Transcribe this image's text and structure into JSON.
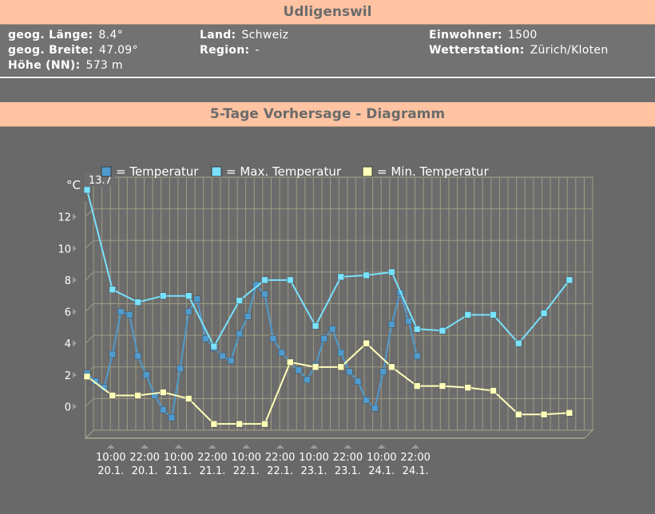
{
  "location": {
    "title": "Udligenswil",
    "laenge_label": "geog. Länge:",
    "laenge_value": "8.4°",
    "breite_label": "geog. Breite:",
    "breite_value": "47.09°",
    "hoehe_label": "Höhe (NN):",
    "hoehe_value": "573 m",
    "land_label": "Land:",
    "land_value": "Schweiz",
    "region_label": "Region:",
    "region_value": "-",
    "einwohner_label": "Einwohner:",
    "einwohner_value": "1500",
    "station_label": "Wetterstation:",
    "station_value": "Zürich/Kloten"
  },
  "forecast": {
    "title": "5-Tage Vorhersage - Diagramm"
  },
  "chart_data": {
    "type": "line",
    "ylabel": "°C",
    "ylim": [
      -2,
      14
    ],
    "yticks": [
      0,
      2,
      4,
      6,
      8,
      10,
      12
    ],
    "grid": true,
    "legend_position": "top",
    "max_annotation": "13.7",
    "x_labels": [
      {
        "time": "10:00",
        "date": "20.1."
      },
      {
        "time": "22:00",
        "date": "20.1."
      },
      {
        "time": "10:00",
        "date": "21.1."
      },
      {
        "time": "22:00",
        "date": "21.1."
      },
      {
        "time": "10:00",
        "date": "22.1."
      },
      {
        "time": "22:00",
        "date": "22.1."
      },
      {
        "time": "10:00",
        "date": "23.1."
      },
      {
        "time": "22:00",
        "date": "23.1."
      },
      {
        "time": "10:00",
        "date": "24.1."
      },
      {
        "time": "22:00",
        "date": "24.1."
      }
    ],
    "series": [
      {
        "name": "= Temperatur",
        "color": "#4f9bcd",
        "points": [
          [
            0,
            2.1
          ],
          [
            1,
            1.6
          ],
          [
            2,
            1.2
          ],
          [
            3,
            3.3
          ],
          [
            4,
            6.0
          ],
          [
            5,
            5.8
          ],
          [
            6,
            3.2
          ],
          [
            7,
            2.0
          ],
          [
            8,
            0.7
          ],
          [
            9,
            -0.2
          ],
          [
            10,
            -0.7
          ],
          [
            11,
            2.4
          ],
          [
            12,
            6.0
          ],
          [
            13,
            6.8
          ],
          [
            14,
            4.3
          ],
          [
            15,
            3.7
          ],
          [
            16,
            3.2
          ],
          [
            17,
            2.9
          ],
          [
            18,
            4.6
          ],
          [
            19,
            5.7
          ],
          [
            20,
            7.7
          ],
          [
            21,
            7.1
          ],
          [
            22,
            4.3
          ],
          [
            23,
            3.4
          ],
          [
            24,
            2.8
          ],
          [
            25,
            2.3
          ],
          [
            26,
            1.7
          ],
          [
            27,
            2.6
          ],
          [
            28,
            4.3
          ],
          [
            29,
            4.9
          ],
          [
            30,
            3.4
          ],
          [
            31,
            2.2
          ],
          [
            32,
            1.6
          ],
          [
            33,
            0.4
          ],
          [
            34,
            -0.1
          ],
          [
            35,
            2.2
          ],
          [
            36,
            5.2
          ],
          [
            37,
            7.2
          ],
          [
            38,
            5.4
          ],
          [
            39,
            3.2
          ]
        ]
      },
      {
        "name": "= Max. Temperatur",
        "color": "#78e2ff",
        "points": [
          [
            0,
            13.7
          ],
          [
            3,
            7.4
          ],
          [
            6,
            6.6
          ],
          [
            9,
            7.0
          ],
          [
            12,
            7.0
          ],
          [
            15,
            3.8
          ],
          [
            18,
            6.7
          ],
          [
            21,
            8.0
          ],
          [
            24,
            8.0
          ],
          [
            27,
            5.1
          ],
          [
            30,
            8.2
          ],
          [
            33,
            8.3
          ],
          [
            36,
            8.5
          ],
          [
            39,
            4.9
          ],
          [
            42,
            4.8
          ],
          [
            45,
            5.8
          ],
          [
            48,
            5.8
          ],
          [
            51,
            4.0
          ],
          [
            54,
            5.9
          ],
          [
            57,
            8.0
          ]
        ]
      },
      {
        "name": "= Min. Temperatur",
        "color": "#ffffb9",
        "points": [
          [
            0,
            1.9
          ],
          [
            3,
            0.7
          ],
          [
            6,
            0.7
          ],
          [
            9,
            0.9
          ],
          [
            12,
            0.5
          ],
          [
            15,
            -1.1
          ],
          [
            18,
            -1.1
          ],
          [
            21,
            -1.1
          ],
          [
            24,
            2.8
          ],
          [
            27,
            2.5
          ],
          [
            30,
            2.5
          ],
          [
            33,
            4.0
          ],
          [
            36,
            2.5
          ],
          [
            39,
            1.3
          ],
          [
            42,
            1.3
          ],
          [
            45,
            1.2
          ],
          [
            48,
            1.0
          ],
          [
            51,
            -0.5
          ],
          [
            54,
            -0.5
          ],
          [
            57,
            -0.4
          ]
        ]
      }
    ]
  }
}
